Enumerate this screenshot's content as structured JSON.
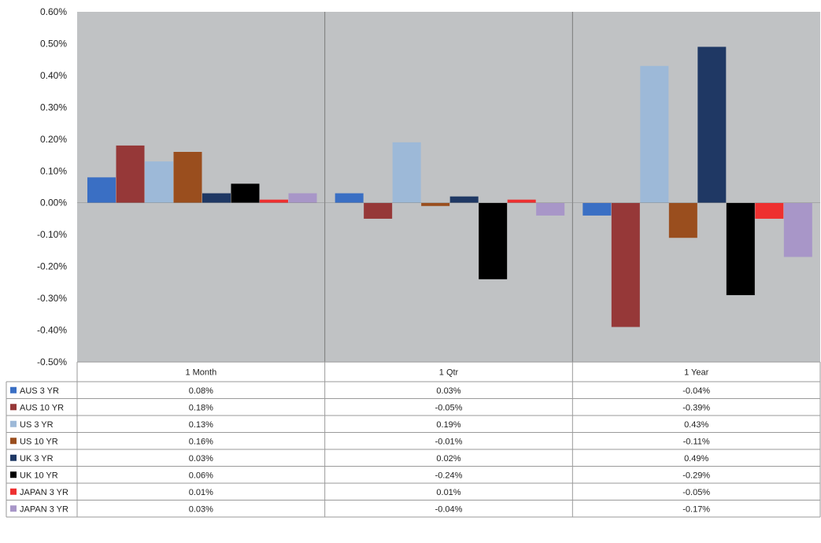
{
  "chart_data": {
    "type": "bar",
    "categories": [
      "1 Month",
      "1 Qtr",
      "1 Year"
    ],
    "ylim": [
      -0.5,
      0.6
    ],
    "yticks": [
      "0.60%",
      "0.50%",
      "0.40%",
      "0.30%",
      "0.20%",
      "0.10%",
      "0.00%",
      "-0.10%",
      "-0.20%",
      "-0.30%",
      "-0.40%",
      "-0.50%"
    ],
    "ytick_values": [
      0.6,
      0.5,
      0.4,
      0.3,
      0.2,
      0.1,
      0.0,
      -0.1,
      -0.2,
      -0.3,
      -0.4,
      -0.5
    ],
    "grid": false,
    "legend": "data-table",
    "series": [
      {
        "name": "AUS 3 YR",
        "color": "#3a6fc4",
        "values": [
          0.08,
          0.03,
          -0.04
        ],
        "labels": [
          "0.08%",
          "0.03%",
          "-0.04%"
        ]
      },
      {
        "name": "AUS 10 YR",
        "color": "#963838",
        "values": [
          0.18,
          -0.05,
          -0.39
        ],
        "labels": [
          "0.18%",
          "-0.05%",
          "-0.39%"
        ]
      },
      {
        "name": "US 3 YR",
        "color": "#9db9d8",
        "values": [
          0.13,
          0.19,
          0.43
        ],
        "labels": [
          "0.13%",
          "0.19%",
          "0.43%"
        ]
      },
      {
        "name": "US 10 YR",
        "color": "#9a4e1e",
        "values": [
          0.16,
          -0.01,
          -0.11
        ],
        "labels": [
          "0.16%",
          "-0.01%",
          "-0.11%"
        ]
      },
      {
        "name": "UK 3 YR",
        "color": "#1f3864",
        "values": [
          0.03,
          0.02,
          0.49
        ],
        "labels": [
          "0.03%",
          "0.02%",
          "0.49%"
        ]
      },
      {
        "name": "UK 10 YR",
        "color": "#000000",
        "values": [
          0.06,
          -0.24,
          -0.29
        ],
        "labels": [
          "0.06%",
          "-0.24%",
          "-0.29%"
        ]
      },
      {
        "name": "JAPAN 3 YR",
        "color": "#ee3030",
        "values": [
          0.01,
          0.01,
          -0.05
        ],
        "labels": [
          "0.01%",
          "0.01%",
          "-0.05%"
        ]
      },
      {
        "name": "JAPAN 3 YR",
        "color": "#a896c8",
        "values": [
          0.03,
          -0.04,
          -0.17
        ],
        "labels": [
          "0.03%",
          "-0.04%",
          "-0.17%"
        ]
      }
    ]
  }
}
